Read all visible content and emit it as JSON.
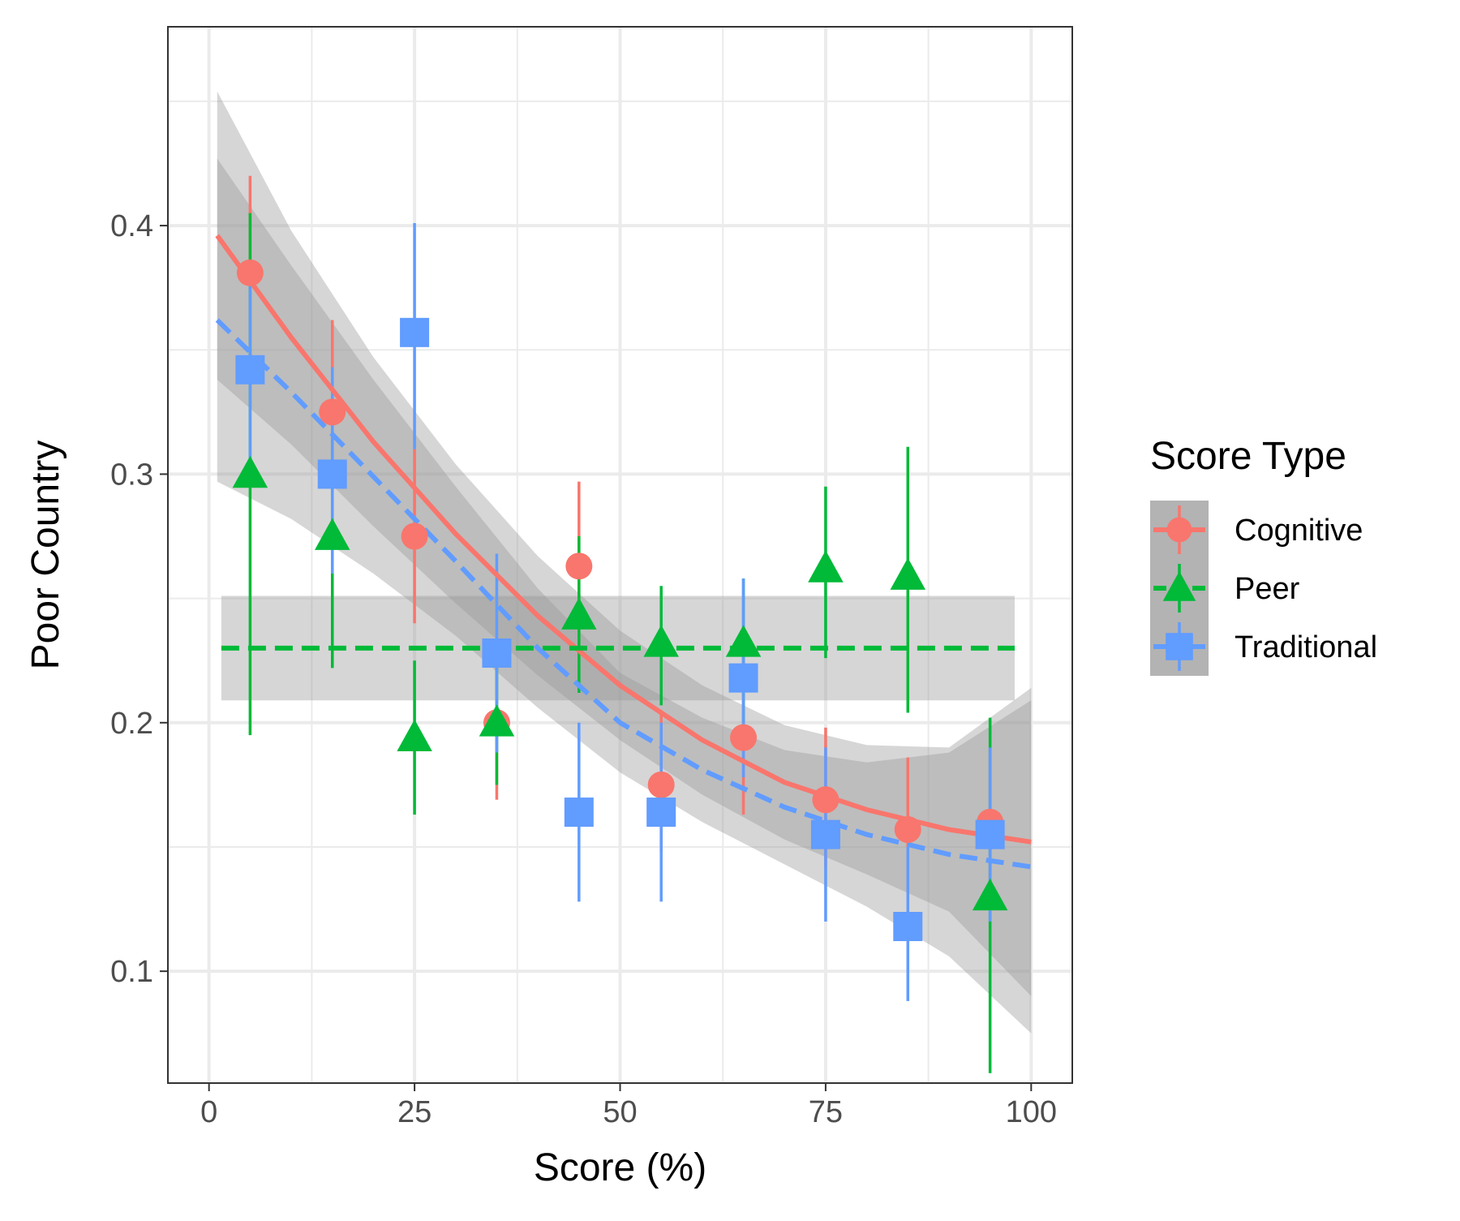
{
  "chart_data": {
    "type": "scatter",
    "xlabel": "Score (%)",
    "ylabel": "Poor Country",
    "xlim": [
      -5,
      105
    ],
    "ylim": [
      0.055,
      0.48
    ],
    "x_ticks": [
      0,
      25,
      50,
      75,
      100
    ],
    "x_tick_labels": [
      "0",
      "25",
      "50",
      "75",
      "100"
    ],
    "y_ticks": [
      0.1,
      0.2,
      0.3,
      0.4
    ],
    "y_tick_labels": [
      "0.1",
      "0.2",
      "0.3",
      "0.4"
    ],
    "grid": true,
    "legend": {
      "title": "Score Type",
      "position": "right"
    },
    "series": [
      {
        "name": "Cognitive",
        "color": "#F8766D",
        "marker": "circle",
        "line_style": "solid",
        "points": [
          {
            "x": 5,
            "y": 0.381,
            "lo": 0.346,
            "hi": 0.42
          },
          {
            "x": 15,
            "y": 0.325,
            "lo": 0.29,
            "hi": 0.362
          },
          {
            "x": 25,
            "y": 0.275,
            "lo": 0.24,
            "hi": 0.31
          },
          {
            "x": 35,
            "y": 0.2,
            "lo": 0.169,
            "hi": 0.233
          },
          {
            "x": 45,
            "y": 0.263,
            "lo": 0.23,
            "hi": 0.297
          },
          {
            "x": 55,
            "y": 0.175,
            "lo": 0.148,
            "hi": 0.205
          },
          {
            "x": 65,
            "y": 0.194,
            "lo": 0.163,
            "hi": 0.225
          },
          {
            "x": 75,
            "y": 0.169,
            "lo": 0.142,
            "hi": 0.198
          },
          {
            "x": 85,
            "y": 0.157,
            "lo": 0.131,
            "hi": 0.186
          },
          {
            "x": 95,
            "y": 0.16,
            "lo": 0.131,
            "hi": 0.19
          }
        ],
        "fit": {
          "x": [
            1,
            10,
            20,
            30,
            40,
            50,
            60,
            70,
            80,
            90,
            100
          ],
          "y": [
            0.396,
            0.355,
            0.313,
            0.276,
            0.243,
            0.215,
            0.193,
            0.176,
            0.165,
            0.157,
            0.152
          ],
          "lo": [
            0.338,
            0.312,
            0.279,
            0.248,
            0.219,
            0.193,
            0.171,
            0.153,
            0.139,
            0.124,
            0.09
          ],
          "hi": [
            0.454,
            0.398,
            0.347,
            0.304,
            0.267,
            0.237,
            0.215,
            0.199,
            0.191,
            0.19,
            0.214
          ]
        }
      },
      {
        "name": "Peer",
        "color": "#00BA38",
        "marker": "triangle",
        "line_style": "dashed",
        "points": [
          {
            "x": 5,
            "y": 0.3,
            "lo": 0.195,
            "hi": 0.405
          },
          {
            "x": 15,
            "y": 0.275,
            "lo": 0.222,
            "hi": 0.318
          },
          {
            "x": 25,
            "y": 0.194,
            "lo": 0.163,
            "hi": 0.225
          },
          {
            "x": 35,
            "y": 0.2,
            "lo": 0.175,
            "hi": 0.228
          },
          {
            "x": 45,
            "y": 0.243,
            "lo": 0.212,
            "hi": 0.275
          },
          {
            "x": 55,
            "y": 0.232,
            "lo": 0.207,
            "hi": 0.255
          },
          {
            "x": 65,
            "y": 0.232,
            "lo": 0.2,
            "hi": 0.258
          },
          {
            "x": 75,
            "y": 0.262,
            "lo": 0.226,
            "hi": 0.295
          },
          {
            "x": 85,
            "y": 0.259,
            "lo": 0.204,
            "hi": 0.311
          },
          {
            "x": 95,
            "y": 0.13,
            "lo": 0.059,
            "hi": 0.202
          }
        ],
        "fit": {
          "x": [
            1.5,
            98
          ],
          "y": [
            0.23,
            0.23
          ],
          "lo": [
            0.209,
            0.209
          ],
          "hi": [
            0.251,
            0.251
          ]
        }
      },
      {
        "name": "Traditional",
        "color": "#619CFF",
        "marker": "square",
        "line_style": "dashed",
        "points": [
          {
            "x": 5,
            "y": 0.342,
            "lo": 0.305,
            "hi": 0.38
          },
          {
            "x": 15,
            "y": 0.3,
            "lo": 0.26,
            "hi": 0.343
          },
          {
            "x": 25,
            "y": 0.357,
            "lo": 0.31,
            "hi": 0.401
          },
          {
            "x": 35,
            "y": 0.228,
            "lo": 0.188,
            "hi": 0.268
          },
          {
            "x": 45,
            "y": 0.164,
            "lo": 0.128,
            "hi": 0.2
          },
          {
            "x": 55,
            "y": 0.164,
            "lo": 0.128,
            "hi": 0.2
          },
          {
            "x": 65,
            "y": 0.218,
            "lo": 0.178,
            "hi": 0.258
          },
          {
            "x": 75,
            "y": 0.155,
            "lo": 0.12,
            "hi": 0.19
          },
          {
            "x": 85,
            "y": 0.118,
            "lo": 0.088,
            "hi": 0.15
          },
          {
            "x": 95,
            "y": 0.155,
            "lo": 0.12,
            "hi": 0.19
          }
        ],
        "fit": {
          "x": [
            1,
            10,
            20,
            30,
            40,
            50,
            60,
            70,
            80,
            90,
            100
          ],
          "y": [
            0.362,
            0.333,
            0.299,
            0.265,
            0.23,
            0.2,
            0.181,
            0.166,
            0.155,
            0.147,
            0.142
          ],
          "lo": [
            0.297,
            0.282,
            0.26,
            0.235,
            0.206,
            0.18,
            0.16,
            0.143,
            0.126,
            0.106,
            0.075
          ],
          "hi": [
            0.427,
            0.384,
            0.338,
            0.295,
            0.254,
            0.22,
            0.202,
            0.189,
            0.184,
            0.188,
            0.209
          ]
        }
      }
    ]
  }
}
